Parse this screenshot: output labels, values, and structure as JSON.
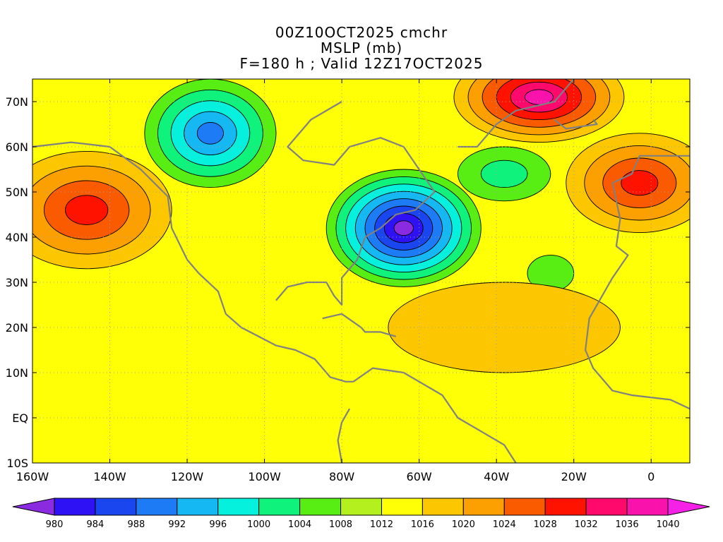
{
  "header": {
    "line1": "00Z10OCT2025 cmchr",
    "line2": "MSLP (mb)",
    "line3": "F=180 h ; Valid 12Z17OCT2025"
  },
  "map": {
    "lon_min": -160,
    "lon_max": 10,
    "lat_min": -10,
    "lat_max": 75,
    "background_level": 1012,
    "lon_ticks": [
      {
        "value": -160,
        "label": "160W"
      },
      {
        "value": -140,
        "label": "140W"
      },
      {
        "value": -120,
        "label": "120W"
      },
      {
        "value": -100,
        "label": "100W"
      },
      {
        "value": -80,
        "label": "80W"
      },
      {
        "value": -60,
        "label": "60W"
      },
      {
        "value": -40,
        "label": "40W"
      },
      {
        "value": -20,
        "label": "20W"
      },
      {
        "value": 0,
        "label": "0"
      }
    ],
    "lat_ticks": [
      {
        "value": 70,
        "label": "70N"
      },
      {
        "value": 60,
        "label": "60N"
      },
      {
        "value": 50,
        "label": "50N"
      },
      {
        "value": 40,
        "label": "40N"
      },
      {
        "value": 30,
        "label": "30N"
      },
      {
        "value": 20,
        "label": "20N"
      },
      {
        "value": 10,
        "label": "10N"
      },
      {
        "value": 0,
        "label": "EQ"
      },
      {
        "value": -10,
        "label": "10S"
      }
    ],
    "pressure_systems": [
      {
        "type": "high",
        "lon": -146,
        "lat": 46,
        "value": 1030,
        "rx": 22,
        "ry": 13
      },
      {
        "type": "high",
        "lon": -29,
        "lat": 71,
        "value": 1038,
        "rx": 22,
        "ry": 10
      },
      {
        "type": "high",
        "lon": -3,
        "lat": 52,
        "value": 1030,
        "rx": 19,
        "ry": 11
      },
      {
        "type": "low",
        "lon": -114,
        "lat": 63,
        "value": 991,
        "rx": 17,
        "ry": 12
      },
      {
        "type": "low",
        "lon": -64,
        "lat": 42,
        "value": 980,
        "rx": 20,
        "ry": 13
      },
      {
        "type": "low",
        "lon": -38,
        "lat": 54,
        "value": 1002,
        "rx": 12,
        "ry": 6
      },
      {
        "type": "low",
        "lon": -26,
        "lat": 32,
        "value": 1006,
        "rx": 6,
        "ry": 4
      },
      {
        "type": "high",
        "lon": -38,
        "lat": 20,
        "value": 1017,
        "rx": 30,
        "ry": 10
      }
    ]
  },
  "colorbar": {
    "levels": [
      980,
      984,
      988,
      992,
      996,
      1000,
      1004,
      1008,
      1012,
      1016,
      1020,
      1024,
      1028,
      1032,
      1036,
      1040
    ],
    "colors": [
      "#8a2be2",
      "#2e12f5",
      "#1a46ef",
      "#1d7cf5",
      "#15b8f3",
      "#05f0dd",
      "#0ff27c",
      "#58ee14",
      "#b4f01e",
      "#ffff06",
      "#fdc700",
      "#fc9f00",
      "#fb5b00",
      "#ff1200",
      "#ff0a6c",
      "#fa12ad",
      "#f521e6"
    ]
  }
}
